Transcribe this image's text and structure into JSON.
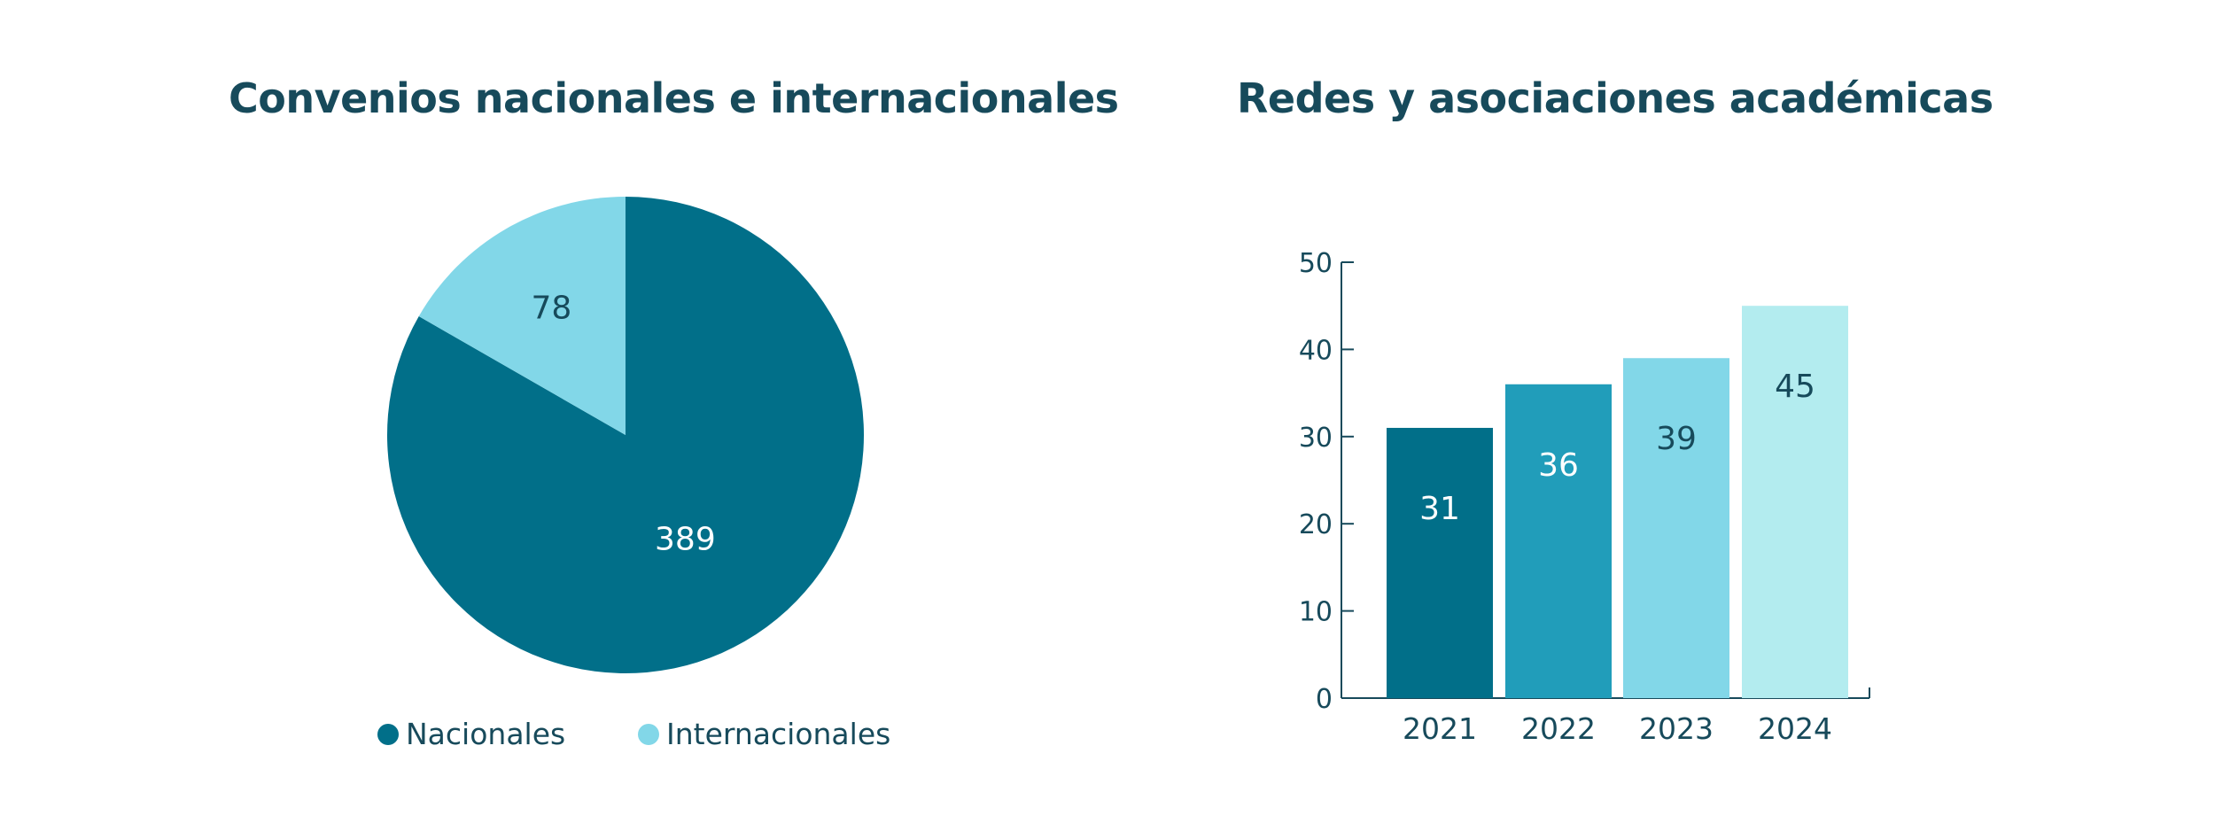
{
  "chart_data": [
    {
      "type": "pie",
      "title": "Convenios nacionales e internacionales",
      "slices": [
        {
          "label": "Nacionales",
          "value": 389,
          "color": "#016f89",
          "label_color": "#ffffff"
        },
        {
          "label": "Internacionales",
          "value": 78,
          "color": "#82d7e8",
          "label_color": "#174a5b"
        }
      ],
      "legend_position": "bottom"
    },
    {
      "type": "bar",
      "title": "Redes y asociaciones académicas",
      "categories": [
        "2021",
        "2022",
        "2023",
        "2024"
      ],
      "values": [
        31,
        36,
        39,
        45
      ],
      "colors": [
        "#016f89",
        "#219dba",
        "#82d7e8",
        "#b3ecef"
      ],
      "label_colors": [
        "#ffffff",
        "#ffffff",
        "#174a5b",
        "#174a5b"
      ],
      "ylim": [
        0,
        50
      ],
      "yticks": [
        0,
        10,
        20,
        30,
        40,
        50
      ],
      "grid": false
    }
  ]
}
